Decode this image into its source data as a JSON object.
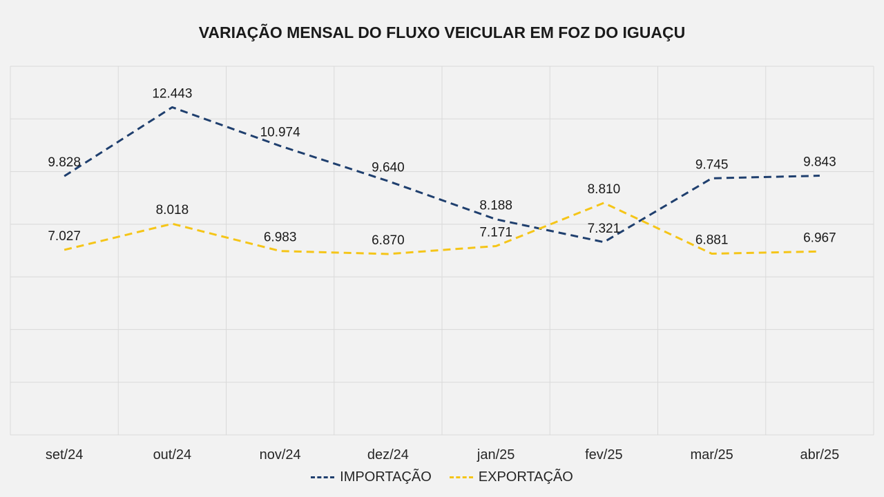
{
  "chart_data": {
    "type": "line",
    "title": "VARIAÇÃO MENSAL DO FLUXO VEICULAR EM FOZ DO IGUAÇU",
    "xlabel": "",
    "ylabel": "",
    "categories": [
      "set/24",
      "out/24",
      "nov/24",
      "dez/24",
      "jan/25",
      "fev/25",
      "mar/25",
      "abr/25"
    ],
    "series": [
      {
        "name": "IMPORTAÇÃO",
        "color": "#1f3f6e",
        "values": [
          9828,
          12443,
          10974,
          9640,
          8188,
          7321,
          9745,
          9843
        ],
        "labels": [
          "9.828",
          "12.443",
          "10.974",
          "9.640",
          "8.188",
          "7.321",
          "9.745",
          "9.843"
        ]
      },
      {
        "name": "EXPORTAÇÃO",
        "color": "#f5c518",
        "values": [
          7027,
          8018,
          6983,
          6870,
          7171,
          8810,
          6881,
          6967
        ],
        "labels": [
          "7.027",
          "8.018",
          "6.983",
          "6.870",
          "7.171",
          "8.810",
          "6.881",
          "6.967"
        ]
      }
    ],
    "ylim": [
      0,
      14000
    ],
    "grid": true,
    "legend": "bottom-center"
  }
}
